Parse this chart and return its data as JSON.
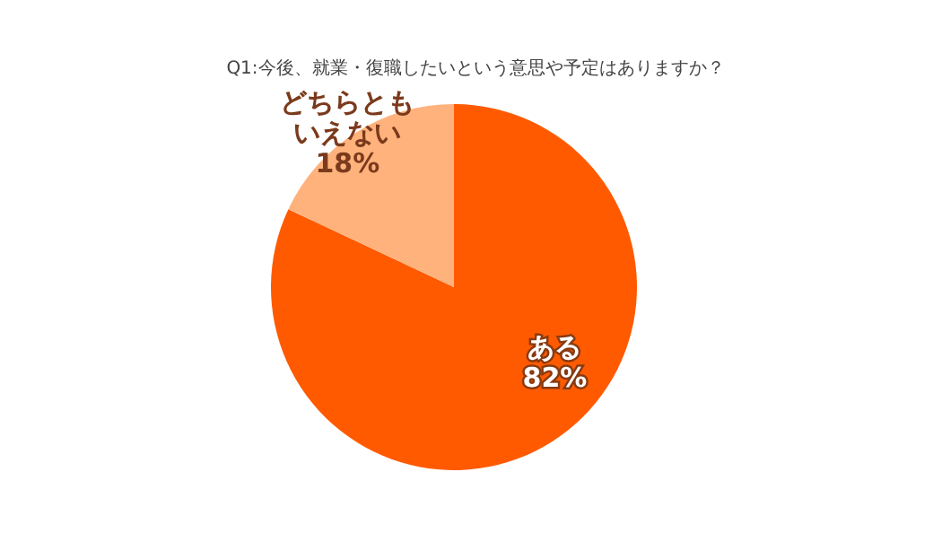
{
  "chart_data": {
    "type": "pie",
    "title": "Q1:今後、就業・復職したいという意思や予定はありますか？",
    "categories": [
      "ある",
      "どちらともいえない"
    ],
    "values": [
      82,
      18
    ],
    "value_labels": [
      "82%",
      "18%"
    ],
    "colors": [
      "#ff5a00",
      "#ffb27c"
    ]
  }
}
